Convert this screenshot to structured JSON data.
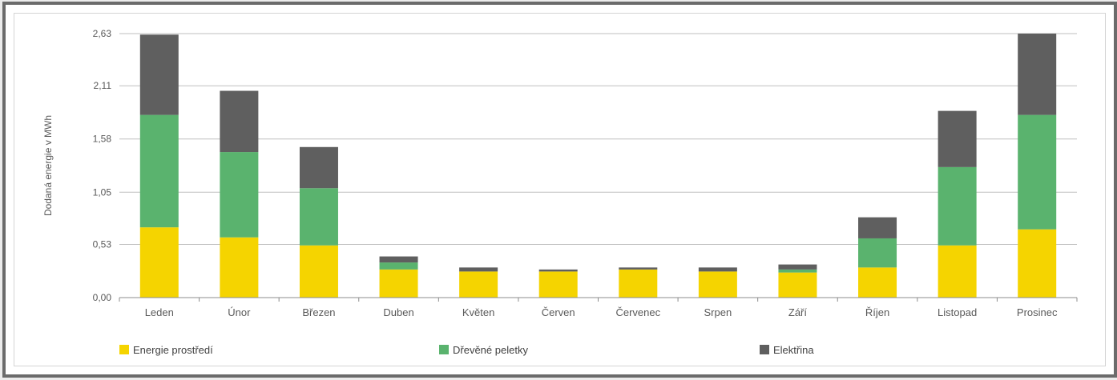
{
  "chart_data": {
    "type": "bar",
    "stacked": true,
    "title": "",
    "xlabel": "",
    "ylabel": "Dodaná energie v MWh",
    "ylim": [
      0,
      2.63
    ],
    "yticks": [
      "0,00",
      "0,53",
      "1,05",
      "1,58",
      "2,11",
      "2,63"
    ],
    "ytick_values": [
      0,
      0.53,
      1.05,
      1.58,
      2.11,
      2.63
    ],
    "grid": true,
    "legend_position": "bottom",
    "categories": [
      "Leden",
      "Únor",
      "Březen",
      "Duben",
      "Květen",
      "Červen",
      "Červenec",
      "Srpen",
      "Září",
      "Říjen",
      "Listopad",
      "Prosinec"
    ],
    "series": [
      {
        "name": "Energie prostředí",
        "color": "#f5d400",
        "values": [
          0.7,
          0.6,
          0.52,
          0.28,
          0.26,
          0.26,
          0.28,
          0.26,
          0.25,
          0.3,
          0.52,
          0.68
        ]
      },
      {
        "name": "Dřevěné peletky",
        "color": "#5ab36e",
        "values": [
          1.12,
          0.85,
          0.57,
          0.07,
          0.0,
          0.0,
          0.0,
          0.0,
          0.03,
          0.29,
          0.78,
          1.14
        ]
      },
      {
        "name": "Elektřina",
        "color": "#5f5f5f",
        "values": [
          0.8,
          0.61,
          0.41,
          0.06,
          0.04,
          0.02,
          0.02,
          0.04,
          0.05,
          0.21,
          0.56,
          0.81
        ]
      }
    ]
  }
}
